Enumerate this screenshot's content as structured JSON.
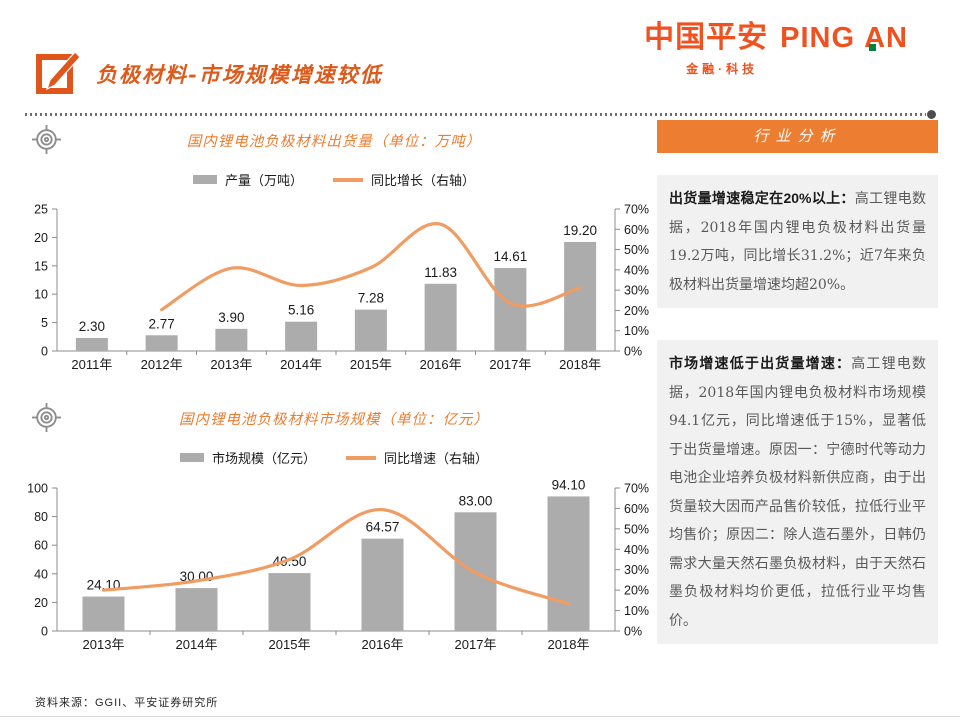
{
  "header": {
    "logo": {
      "cn": "中国平安",
      "en1": "PING",
      "en2": "AN",
      "tagline": "金融·科技"
    },
    "title": "负极材料-市场规模增速较低"
  },
  "panel": {
    "title": "行业分析",
    "blocks": [
      {
        "lead": "出货量增速稳定在20%以上：",
        "body": "高工锂电数据，2018年国内锂电负极材料出货量19.2万吨，同比增长31.2%；近7年来负极材料出货量增速均超20%。"
      },
      {
        "lead": "市场增速低于出货量增速：",
        "body": "高工锂电数据，2018年国内锂电负极材料市场规模94.1亿元，同比增速低于15%，显著低于出货量增速。原因一：宁德时代等动力电池企业培养负极材料新供应商，由于出货量较大因而产品售价较低，拉低行业平均售价；原因二：除人造石墨外，日韩仍需求大量天然石墨负极材料，由于天然石墨负极材料均价更低，拉低行业平均售价。"
      }
    ]
  },
  "footer": {
    "source": "资料来源：GGII、平安证券研究所"
  },
  "colors": {
    "brand": "#F0511E",
    "page_title": "#DD5A1B",
    "chart_title": "#ED7D31",
    "banner": "#ED7D31",
    "bar": "#ACACAC",
    "line": "#F09C63",
    "box_bg": "#F1F1F1",
    "green_dot": "#00843D"
  },
  "chart_data": [
    {
      "type": "bar",
      "title": "国内锂电池负极材料出货量（单位：万吨）",
      "legend": [
        "产量（万吨）",
        "同比增长（右轴）"
      ],
      "categories": [
        "2011年",
        "2012年",
        "2013年",
        "2014年",
        "2015年",
        "2016年",
        "2017年",
        "2018年"
      ],
      "series": [
        {
          "name": "产量（万吨）",
          "type": "bar",
          "axis": "left",
          "values": [
            2.3,
            2.77,
            3.9,
            5.16,
            7.28,
            11.83,
            14.61,
            19.2
          ],
          "labels": [
            "2.30",
            "2.77",
            "3.90",
            "5.16",
            "7.28",
            "11.83",
            "14.61",
            "19.20"
          ]
        },
        {
          "name": "同比增长（右轴）",
          "type": "line",
          "axis": "right",
          "values": [
            null,
            20.4,
            40.8,
            32.3,
            41.1,
            62.5,
            23.5,
            31.2
          ]
        }
      ],
      "left_axis": {
        "min": 0,
        "max": 25,
        "step": 5
      },
      "right_axis": {
        "min": 0,
        "max": 70,
        "step": 10,
        "suffix": "%"
      },
      "grid": false,
      "legend_position": "top",
      "colors": {
        "bar": "#ACACAC",
        "line": "#F09C63"
      }
    },
    {
      "type": "bar",
      "title": "国内锂电池负极材料市场规模（单位：亿元）",
      "legend": [
        "市场规模（亿元）",
        "同比增速（右轴）"
      ],
      "categories": [
        "2013年",
        "2014年",
        "2015年",
        "2016年",
        "2017年",
        "2018年"
      ],
      "series": [
        {
          "name": "市场规模（亿元）",
          "type": "bar",
          "axis": "left",
          "values": [
            24.1,
            30.0,
            40.5,
            64.57,
            83.0,
            94.1
          ],
          "labels": [
            "24.10",
            "30.00",
            "40.50",
            "64.57",
            "83.00",
            "94.10"
          ]
        },
        {
          "name": "同比增速（右轴）",
          "type": "line",
          "axis": "right",
          "values": [
            20.0,
            24.5,
            35.0,
            59.4,
            28.5,
            13.4
          ]
        }
      ],
      "left_axis": {
        "min": 0,
        "max": 100,
        "step": 20
      },
      "right_axis": {
        "min": 0,
        "max": 70,
        "step": 10,
        "suffix": "%"
      },
      "grid": false,
      "legend_position": "top",
      "colors": {
        "bar": "#ACACAC",
        "line": "#F09C63"
      }
    }
  ]
}
